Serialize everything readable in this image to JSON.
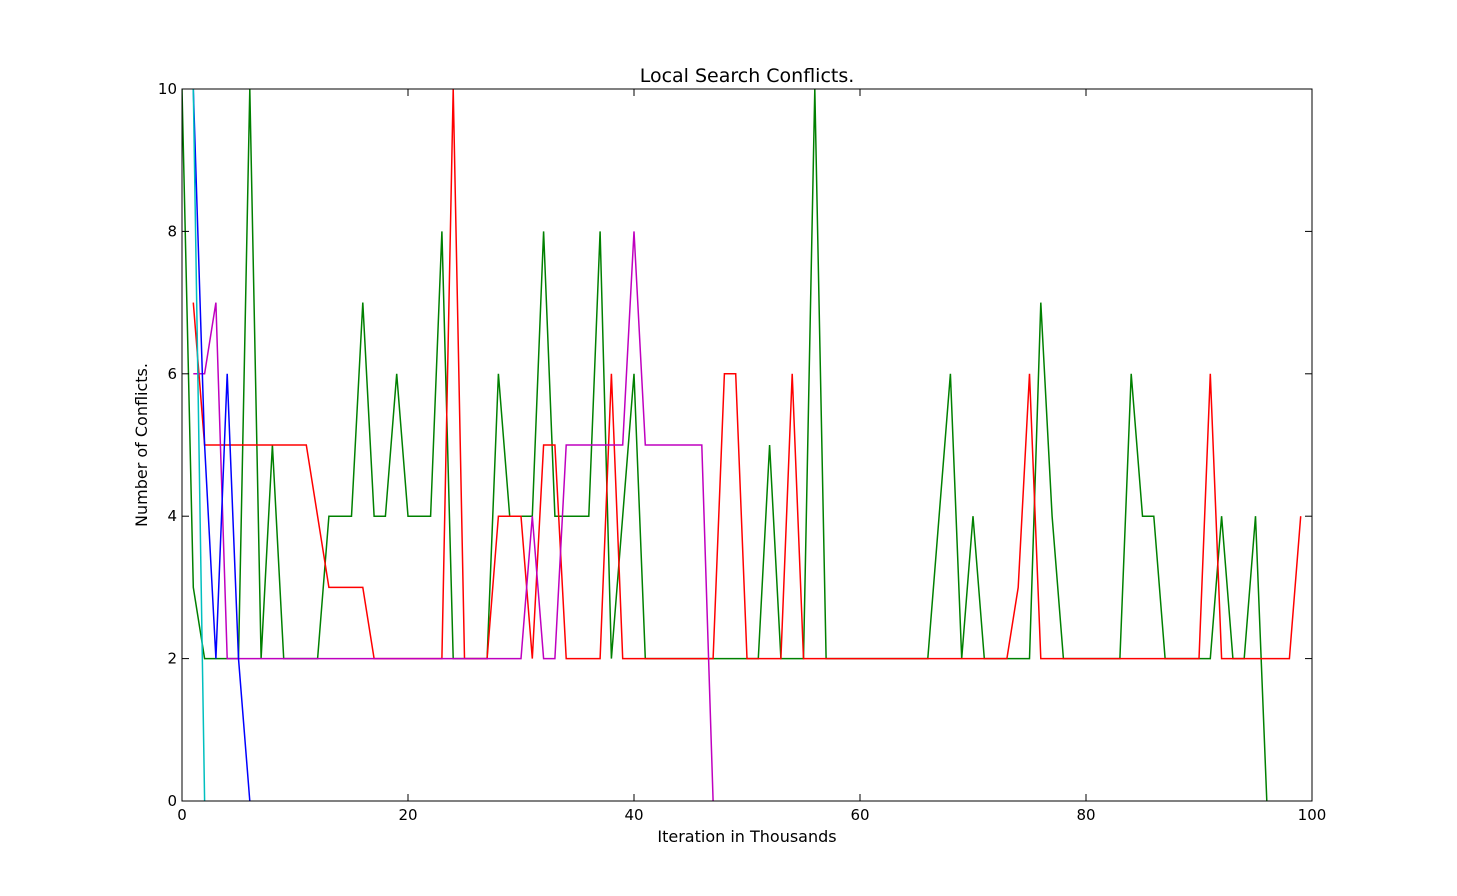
{
  "chart_data": {
    "type": "line",
    "title": "Local Search Conflicts.",
    "xlabel": "Iteration in Thousands",
    "ylabel": "Number of Conflicts.",
    "xlim": [
      0,
      100
    ],
    "ylim": [
      0,
      10
    ],
    "xticks": [
      "0",
      "20",
      "40",
      "60",
      "80",
      "100"
    ],
    "yticks": [
      "0",
      "2",
      "4",
      "6",
      "8",
      "10"
    ],
    "grid": false,
    "legend": "none",
    "series": [
      {
        "color": "#008000",
        "x": [
          0,
          1,
          2,
          3,
          4,
          5,
          6,
          7,
          8,
          9,
          10,
          11,
          12,
          13,
          14,
          15,
          16,
          17,
          18,
          19,
          20,
          21,
          22,
          23,
          24,
          25,
          26,
          27,
          28,
          29,
          30,
          31,
          32,
          33,
          34,
          35,
          36,
          37,
          38,
          39,
          40,
          41,
          42,
          43,
          44,
          45,
          46,
          47,
          48,
          49,
          50,
          51,
          52,
          53,
          54,
          55,
          56,
          57,
          58,
          59,
          60,
          61,
          62,
          63,
          64,
          65,
          66,
          67,
          68,
          69,
          70,
          71,
          72,
          73,
          74,
          75,
          76,
          77,
          78,
          79,
          80,
          81,
          82,
          83,
          84,
          85,
          86,
          87,
          88,
          89,
          90,
          91,
          92,
          93,
          94,
          95,
          96
        ],
        "y": [
          10,
          3,
          2,
          2,
          2,
          2,
          10,
          2,
          5,
          2,
          2,
          2,
          2,
          4,
          4,
          4,
          7,
          4,
          4,
          6,
          4,
          4,
          4,
          8,
          2,
          2,
          2,
          2,
          6,
          4,
          4,
          4,
          8,
          4,
          4,
          4,
          4,
          8,
          2,
          4,
          6,
          2,
          2,
          2,
          2,
          2,
          2,
          2,
          2,
          2,
          2,
          2,
          5,
          2,
          2,
          2,
          10,
          2,
          2,
          2,
          2,
          2,
          2,
          2,
          2,
          2,
          2,
          4,
          6,
          2,
          4,
          2,
          2,
          2,
          2,
          2,
          7,
          4,
          2,
          2,
          2,
          2,
          2,
          2,
          6,
          4,
          4,
          2,
          2,
          2,
          2,
          2,
          4,
          2,
          2,
          4,
          0
        ]
      },
      {
        "color": "#ff0000",
        "x": [
          1,
          2,
          3,
          4,
          5,
          6,
          7,
          8,
          9,
          10,
          11,
          12,
          13,
          14,
          15,
          16,
          17,
          18,
          19,
          20,
          21,
          22,
          23,
          24,
          25,
          26,
          27,
          28,
          29,
          30,
          31,
          32,
          33,
          34,
          35,
          36,
          37,
          38,
          39,
          40,
          41,
          42,
          43,
          44,
          45,
          46,
          47,
          48,
          49,
          50,
          51,
          52,
          53,
          54,
          55,
          56,
          57,
          58,
          59,
          60,
          61,
          62,
          63,
          64,
          65,
          66,
          67,
          68,
          69,
          70,
          71,
          72,
          73,
          74,
          75,
          76,
          77,
          78,
          79,
          80,
          81,
          82,
          83,
          84,
          85,
          86,
          87,
          88,
          89,
          90,
          91,
          92,
          93,
          94,
          95,
          96,
          97,
          98,
          99
        ],
        "y": [
          7,
          5,
          5,
          5,
          5,
          5,
          5,
          5,
          5,
          5,
          5,
          4,
          3,
          3,
          3,
          3,
          2,
          2,
          2,
          2,
          2,
          2,
          2,
          10,
          2,
          2,
          2,
          4,
          4,
          4,
          2,
          5,
          5,
          2,
          2,
          2,
          2,
          6,
          2,
          2,
          2,
          2,
          2,
          2,
          2,
          2,
          2,
          6,
          6,
          2,
          2,
          2,
          2,
          6,
          2,
          2,
          2,
          2,
          2,
          2,
          2,
          2,
          2,
          2,
          2,
          2,
          2,
          2,
          2,
          2,
          2,
          2,
          2,
          3,
          6,
          2,
          2,
          2,
          2,
          2,
          2,
          2,
          2,
          2,
          2,
          2,
          2,
          2,
          2,
          2,
          6,
          2,
          2,
          2,
          2,
          2,
          2,
          2,
          4
        ]
      },
      {
        "color": "#bf00bf",
        "x": [
          1,
          2,
          3,
          4,
          5,
          6,
          7,
          8,
          9,
          10,
          11,
          12,
          13,
          14,
          15,
          16,
          17,
          18,
          19,
          20,
          21,
          22,
          23,
          24,
          25,
          26,
          27,
          28,
          29,
          30,
          31,
          32,
          33,
          34,
          35,
          36,
          37,
          38,
          39,
          40,
          41,
          42,
          43,
          44,
          45,
          46,
          47
        ],
        "y": [
          6,
          6,
          7,
          2,
          2,
          2,
          2,
          2,
          2,
          2,
          2,
          2,
          2,
          2,
          2,
          2,
          2,
          2,
          2,
          2,
          2,
          2,
          2,
          2,
          2,
          2,
          2,
          2,
          2,
          2,
          4,
          2,
          2,
          5,
          5,
          5,
          5,
          5,
          5,
          8,
          5,
          5,
          5,
          5,
          5,
          5,
          0
        ]
      },
      {
        "color": "#0000ff",
        "x": [
          1,
          2,
          3,
          4,
          5,
          6
        ],
        "y": [
          10,
          5,
          2,
          6,
          2,
          0
        ]
      },
      {
        "color": "#00bfbf",
        "x": [
          1,
          2
        ],
        "y": [
          10,
          0
        ]
      }
    ]
  }
}
